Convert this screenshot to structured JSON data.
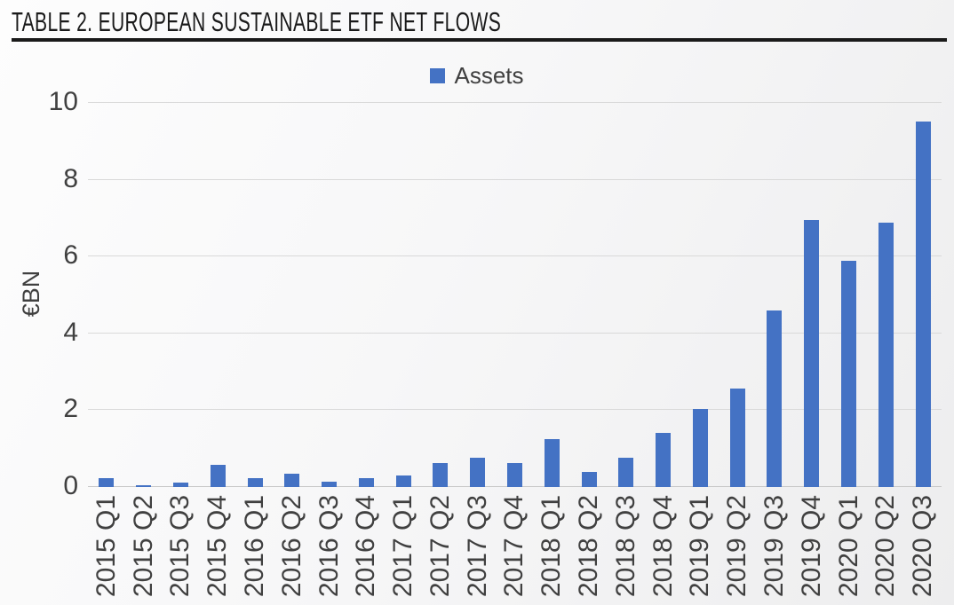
{
  "header": {
    "title": "TABLE 2. EUROPEAN SUSTAINABLE ETF NET FLOWS"
  },
  "colors": {
    "bar": "#4472C4",
    "gridline": "#d9d9d9",
    "axis_line": "#c8c8c8",
    "tick_text": "#404040",
    "title_text": "#1a1a1a"
  },
  "chart_data": {
    "type": "bar",
    "title": "TABLE 2. EUROPEAN SUSTAINABLE ETF NET FLOWS",
    "ylabel": "€BN",
    "xlabel": "",
    "ylim": [
      0,
      10
    ],
    "yticks": [
      0,
      2,
      4,
      6,
      8,
      10
    ],
    "grid": true,
    "legend_position": "top-center",
    "categories": [
      "2015 Q1",
      "2015 Q2",
      "2015 Q3",
      "2015 Q4",
      "2016 Q1",
      "2016 Q2",
      "2016 Q3",
      "2016 Q4",
      "2017 Q1",
      "2017 Q2",
      "2017 Q3",
      "2017 Q4",
      "2018 Q1",
      "2018 Q2",
      "2018 Q3",
      "2018 Q4",
      "2019 Q1",
      "2019 Q2",
      "2019 Q3",
      "2019 Q4",
      "2020 Q1",
      "2020 Q2",
      "2020 Q3"
    ],
    "series": [
      {
        "name": "Assets",
        "color": "#4472C4",
        "values": [
          0.2,
          0.03,
          0.1,
          0.55,
          0.2,
          0.33,
          0.12,
          0.2,
          0.27,
          0.6,
          0.74,
          0.6,
          1.22,
          0.37,
          0.73,
          1.38,
          2.02,
          2.53,
          4.58,
          6.93,
          5.86,
          6.85,
          9.49
        ]
      }
    ]
  }
}
